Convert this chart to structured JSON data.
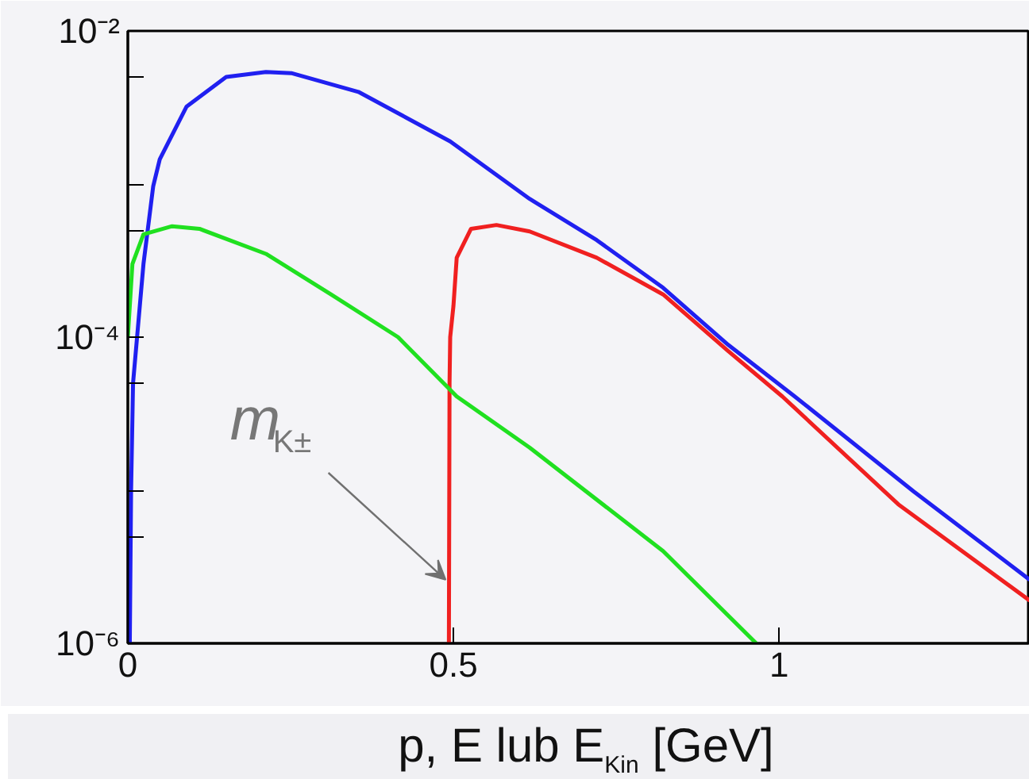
{
  "chart_data": {
    "type": "line",
    "xlabel": "p, E lub E$_{Kin}$ [GeV]",
    "xlim": [
      0,
      1.385
    ],
    "ylim": [
      1e-06,
      0.01
    ],
    "log": true,
    "xticks": [
      0,
      0.5,
      1
    ],
    "yticks": [
      {
        "value": 1e-06,
        "label": "10⁻⁶"
      },
      {
        "value": 5e-06,
        "label": null
      },
      {
        "value": 1e-05,
        "label": null
      },
      {
        "value": 5e-05,
        "label": null
      },
      {
        "value": 0.0001,
        "label": "10⁻⁴"
      },
      {
        "value": 0.0005,
        "label": null
      },
      {
        "value": 0.001,
        "label": null
      },
      {
        "value": 0.005,
        "label": null
      },
      {
        "value": 0.01,
        "label": "10⁻²"
      }
    ],
    "marker": "none",
    "line_style": "solid",
    "annotations": [
      {
        "text": "m$_{K±}$",
        "x": 0.488,
        "y": 2.6e-06
      }
    ],
    "series": [
      {
        "color": "#2020f0",
        "x": [
          0.003,
          0.005,
          0.008,
          0.024,
          0.039,
          0.049,
          0.09,
          0.151,
          0.212,
          0.251,
          0.354,
          0.495,
          0.617,
          0.72,
          0.822,
          0.922,
          1.024,
          1.207,
          1.385
        ],
        "values": [
          1e-06,
          1e-05,
          5e-05,
          0.0003,
          0.00097,
          0.00145,
          0.0032,
          0.005,
          0.0054,
          0.0053,
          0.004,
          0.0019,
          0.0008,
          0.00043,
          0.00021,
          8.9e-05,
          4.1e-05,
          9.8e-06,
          2.6e-06
        ]
      },
      {
        "color": "#f02020",
        "x": [
          0.493,
          0.494,
          0.495,
          0.5,
          0.505,
          0.527,
          0.566,
          0.617,
          0.72,
          0.822,
          0.922,
          1.005,
          1.183,
          1.385
        ],
        "values": [
          1e-06,
          5e-05,
          0.0001,
          0.00016,
          0.00033,
          0.00051,
          0.00054,
          0.00049,
          0.00033,
          0.00019,
          8.1e-05,
          4.1e-05,
          8.1e-06,
          1.9e-06
        ]
      },
      {
        "color": "#20e020",
        "x": [
          0.0,
          0.007,
          0.024,
          0.068,
          0.11,
          0.212,
          0.312,
          0.415,
          0.505,
          0.617,
          0.822,
          0.965
        ],
        "values": [
          0.0001,
          0.0003,
          0.00047,
          0.00053,
          0.00051,
          0.00035,
          0.00019,
          0.0001,
          4.1e-05,
          1.9e-05,
          4e-06,
          1e-06
        ]
      }
    ]
  }
}
